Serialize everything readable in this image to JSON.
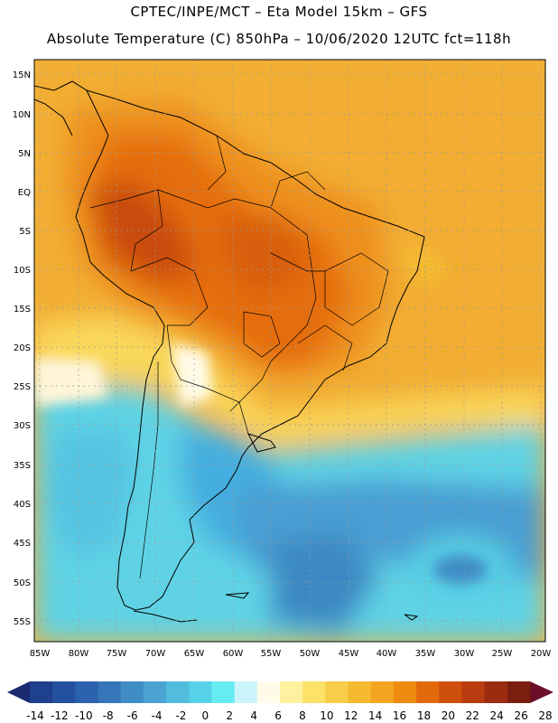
{
  "header": {
    "line1": "CPTEC/INPE/MCT –  Eta Model 15km – GFS",
    "line2": "Absolute Temperature (C) 850hPa – 10/06/2020 12UTC fct=118h"
  },
  "axes": {
    "lat_labels": [
      "15N",
      "10N",
      "5N",
      "EQ",
      "5S",
      "10S",
      "15S",
      "20S",
      "25S",
      "30S",
      "35S",
      "40S",
      "45S",
      "50S",
      "55S"
    ],
    "lon_labels": [
      "85W",
      "80W",
      "75W",
      "70W",
      "65W",
      "60W",
      "55W",
      "50W",
      "45W",
      "40W",
      "35W",
      "30W",
      "25W",
      "20W"
    ]
  },
  "colorbar": {
    "ticks": [
      "-14",
      "-12",
      "-10",
      "-8",
      "-6",
      "-4",
      "-2",
      "0",
      "2",
      "4",
      "6",
      "8",
      "10",
      "12",
      "14",
      "16",
      "18",
      "20",
      "22",
      "24",
      "26",
      "28"
    ],
    "colors": [
      "#1f3f8f",
      "#25509e",
      "#2c62ad",
      "#3575b8",
      "#3f8cc6",
      "#4aa3d2",
      "#52bcdd",
      "#56d2e6",
      "#66ecf0",
      "#caf4fb",
      "#fffbe8",
      "#fff1a0",
      "#fde26a",
      "#f8cd47",
      "#f5ba30",
      "#f2a51f",
      "#ee8a10",
      "#e26a0b",
      "#cf4f0d",
      "#b83c10",
      "#9c2c10",
      "#7a1e10"
    ],
    "min_arrow_color": "#1a2a70",
    "max_arrow_color": "#6b0e2a"
  }
}
